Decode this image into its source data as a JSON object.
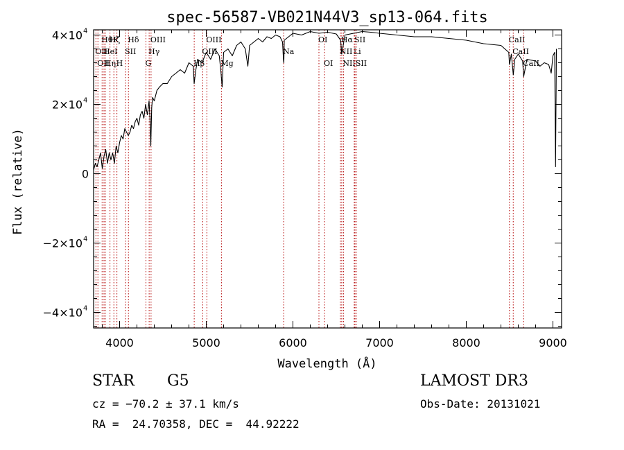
{
  "chart_data": {
    "type": "line",
    "title": "spec-56587-VB021N44V3_sp13-064.fits",
    "xlabel": "Wavelength (Å)",
    "ylabel": "Flux (relative)",
    "xlim": [
      3700,
      9100
    ],
    "ylim": [
      -44500,
      41500
    ],
    "x_ticks": [
      4000,
      5000,
      6000,
      7000,
      8000,
      9000
    ],
    "x_tick_labels": [
      "4000",
      "5000",
      "6000",
      "7000",
      "8000",
      "9000"
    ],
    "y_ticks": [
      {
        "value": 40000,
        "mant": "4×10",
        "exp": "4"
      },
      {
        "value": 20000,
        "mant": "2×10",
        "exp": "4"
      },
      {
        "value": 0,
        "mant": "0",
        "exp": ""
      },
      {
        "value": -20000,
        "mant": "−2×10",
        "exp": "4"
      },
      {
        "value": -40000,
        "mant": "−4×10",
        "exp": "4"
      }
    ],
    "series": [
      {
        "name": "flux",
        "x": [
          3700,
          3720,
          3740,
          3760,
          3780,
          3800,
          3820,
          3840,
          3860,
          3880,
          3900,
          3920,
          3940,
          3960,
          3980,
          4000,
          4020,
          4040,
          4060,
          4080,
          4100,
          4120,
          4140,
          4160,
          4180,
          4200,
          4220,
          4240,
          4260,
          4280,
          4300,
          4320,
          4330,
          4340,
          4350,
          4360,
          4370,
          4380,
          4400,
          4430,
          4460,
          4500,
          4550,
          4600,
          4650,
          4700,
          4750,
          4800,
          4850,
          4860,
          4880,
          4900,
          4950,
          5000,
          5050,
          5100,
          5150,
          5170,
          5183,
          5200,
          5250,
          5300,
          5350,
          5400,
          5450,
          5480,
          5500,
          5550,
          5600,
          5650,
          5700,
          5750,
          5800,
          5850,
          5880,
          5890,
          5895,
          5900,
          5950,
          6000,
          6100,
          6200,
          6300,
          6400,
          6500,
          6550,
          6563,
          6580,
          6600,
          6700,
          6800,
          6900,
          7000,
          7200,
          7400,
          7600,
          7800,
          8000,
          8200,
          8400,
          8490,
          8498,
          8520,
          8542,
          8560,
          8600,
          8650,
          8662,
          8700,
          8800,
          8850,
          8900,
          8950,
          8980,
          9000,
          9020,
          9030,
          9040
        ],
        "y": [
          1000,
          3000,
          2000,
          4000,
          6000,
          1500,
          5000,
          7000,
          3000,
          6000,
          4000,
          6000,
          3000,
          8000,
          6000,
          9000,
          11000,
          10000,
          13000,
          12000,
          11000,
          12000,
          14000,
          13000,
          15000,
          16000,
          14000,
          17000,
          18000,
          16000,
          20000,
          17000,
          19000,
          21000,
          16000,
          8000,
          19000,
          22000,
          21000,
          24000,
          25000,
          26000,
          26000,
          28000,
          29000,
          30000,
          29000,
          32000,
          31000,
          26000,
          30000,
          33000,
          32000,
          35000,
          33000,
          36000,
          34000,
          29000,
          25000,
          35000,
          36000,
          34000,
          37000,
          38000,
          36000,
          31000,
          37000,
          38000,
          39000,
          38000,
          39500,
          39000,
          40000,
          39500,
          38000,
          33000,
          32000,
          38500,
          39500,
          40500,
          40000,
          41000,
          40500,
          40800,
          40300,
          38500,
          34500,
          37000,
          40000,
          40500,
          41000,
          40800,
          40500,
          40000,
          39500,
          39500,
          39000,
          38500,
          37500,
          37000,
          35000,
          31500,
          34500,
          28500,
          33000,
          34500,
          32500,
          28000,
          33000,
          32500,
          31000,
          32000,
          31500,
          29000,
          34000,
          35000,
          2000,
          36000
        ]
      }
    ],
    "line_marks": [
      {
        "wave": 3727,
        "labels": [
          {
            "text": "OII",
            "row": 1
          }
        ]
      },
      {
        "wave": 3750,
        "labels": [
          {
            "text": "OII",
            "row": 2
          }
        ]
      },
      {
        "wave": 3798,
        "labels": [
          {
            "text": "Hθ",
            "row": 0
          }
        ]
      },
      {
        "wave": 3820,
        "labels": [
          {
            "text": "HeI",
            "row": 1
          }
        ]
      },
      {
        "wave": 3835,
        "labels": [
          {
            "text": "Hη",
            "row": 2
          }
        ]
      },
      {
        "wave": 3889,
        "labels": [
          {
            "text": "Hζ",
            "row": 0
          }
        ]
      },
      {
        "wave": 3934,
        "labels": [
          {
            "text": "K",
            "row": 0
          }
        ]
      },
      {
        "wave": 3969,
        "labels": [
          {
            "text": "H",
            "row": 2
          }
        ]
      },
      {
        "wave": 4069,
        "labels": [
          {
            "text": "SII",
            "row": 1
          }
        ]
      },
      {
        "wave": 4102,
        "labels": [
          {
            "text": "Hδ",
            "row": 0
          }
        ]
      },
      {
        "wave": 4304,
        "labels": [
          {
            "text": "G",
            "row": 2
          }
        ]
      },
      {
        "wave": 4341,
        "labels": [
          {
            "text": "Hγ",
            "row": 1
          }
        ]
      },
      {
        "wave": 4363,
        "labels": [
          {
            "text": "OIII",
            "row": 0
          }
        ]
      },
      {
        "wave": 4861,
        "labels": [
          {
            "text": "Hβ",
            "row": 2
          }
        ]
      },
      {
        "wave": 4959,
        "labels": [
          {
            "text": "OIII",
            "row": 1
          }
        ]
      },
      {
        "wave": 5007,
        "labels": [
          {
            "text": "OIII",
            "row": 0
          }
        ]
      },
      {
        "wave": 5175,
        "labels": [
          {
            "text": "Mg",
            "row": 2
          }
        ]
      },
      {
        "wave": 5893,
        "labels": [
          {
            "text": "Na",
            "row": 1
          }
        ]
      },
      {
        "wave": 6300,
        "labels": [
          {
            "text": "OI",
            "row": 0
          }
        ]
      },
      {
        "wave": 6364,
        "labels": [
          {
            "text": "OI",
            "row": 2
          }
        ]
      },
      {
        "wave": 6548,
        "labels": [
          {
            "text": "NII",
            "row": 1
          }
        ]
      },
      {
        "wave": 6563,
        "labels": [
          {
            "text": "Hα",
            "row": 0
          }
        ]
      },
      {
        "wave": 6583,
        "labels": [
          {
            "text": "NII",
            "row": 2
          }
        ]
      },
      {
        "wave": 6707,
        "labels": [
          {
            "text": "Li",
            "row": 1
          }
        ]
      },
      {
        "wave": 6716,
        "labels": [
          {
            "text": "SII",
            "row": 0
          }
        ]
      },
      {
        "wave": 6731,
        "labels": [
          {
            "text": "SII",
            "row": 2
          }
        ]
      },
      {
        "wave": 8498,
        "labels": [
          {
            "text": "CaII",
            "row": 0
          }
        ]
      },
      {
        "wave": 8542,
        "labels": [
          {
            "text": "CaII",
            "row": 1
          }
        ]
      },
      {
        "wave": 8662,
        "labels": [
          {
            "text": "CaII",
            "row": 2
          }
        ]
      }
    ]
  },
  "info": {
    "class": "STAR",
    "subclass": "G5",
    "survey": "LAMOST DR3",
    "redshift": "cz = −70.2 ± 37.1 km/s",
    "obs_date": "Obs-Date: 20131021",
    "coords": "RA =  24.70358, DEC =  44.92222"
  },
  "colors": {
    "spectrum": "#000000",
    "line_marker": "#b30000",
    "axis": "#000000"
  }
}
